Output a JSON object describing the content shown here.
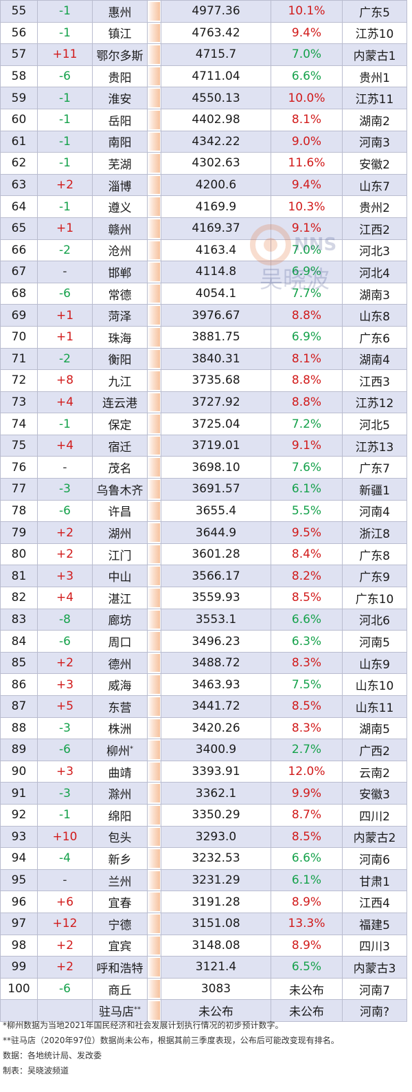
{
  "rows": [
    {
      "rank": "55",
      "change": "-1",
      "city": "惠州",
      "gdp": "4977.36",
      "growth": "10.1%",
      "prov": "广东5"
    },
    {
      "rank": "56",
      "change": "-1",
      "city": "镇江",
      "gdp": "4763.42",
      "growth": "9.4%",
      "prov": "江苏10"
    },
    {
      "rank": "57",
      "change": "+11",
      "city": "鄂尔多斯",
      "gdp": "4715.7",
      "growth": "7.0%",
      "prov": "内蒙古1"
    },
    {
      "rank": "58",
      "change": "-6",
      "city": "贵阳",
      "gdp": "4711.04",
      "growth": "6.6%",
      "prov": "贵州1"
    },
    {
      "rank": "59",
      "change": "-1",
      "city": "淮安",
      "gdp": "4550.13",
      "growth": "10.0%",
      "prov": "江苏11"
    },
    {
      "rank": "60",
      "change": "-1",
      "city": "岳阳",
      "gdp": "4402.98",
      "growth": "8.1%",
      "prov": "湖南2"
    },
    {
      "rank": "61",
      "change": "-1",
      "city": "南阳",
      "gdp": "4342.22",
      "growth": "9.0%",
      "prov": "河南3"
    },
    {
      "rank": "62",
      "change": "-1",
      "city": "芜湖",
      "gdp": "4302.63",
      "growth": "11.6%",
      "prov": "安徽2"
    },
    {
      "rank": "63",
      "change": "+2",
      "city": "淄博",
      "gdp": "4200.6",
      "growth": "9.4%",
      "prov": "山东7"
    },
    {
      "rank": "64",
      "change": "-1",
      "city": "遵义",
      "gdp": "4169.9",
      "growth": "10.3%",
      "prov": "贵州2"
    },
    {
      "rank": "65",
      "change": "+1",
      "city": "赣州",
      "gdp": "4169.37",
      "growth": "9.1%",
      "prov": "江西2"
    },
    {
      "rank": "66",
      "change": "-2",
      "city": "沧州",
      "gdp": "4163.4",
      "growth": "7.0%",
      "prov": "河北3"
    },
    {
      "rank": "67",
      "change": "-",
      "city": "邯郸",
      "gdp": "4114.8",
      "growth": "6.9%",
      "prov": "河北4"
    },
    {
      "rank": "68",
      "change": "-6",
      "city": "常德",
      "gdp": "4054.1",
      "growth": "7.7%",
      "prov": "湖南3"
    },
    {
      "rank": "69",
      "change": "+1",
      "city": "菏泽",
      "gdp": "3976.67",
      "growth": "8.8%",
      "prov": "山东8"
    },
    {
      "rank": "70",
      "change": "+1",
      "city": "珠海",
      "gdp": "3881.75",
      "growth": "6.9%",
      "prov": "广东6"
    },
    {
      "rank": "71",
      "change": "-2",
      "city": "衡阳",
      "gdp": "3840.31",
      "growth": "8.1%",
      "prov": "湖南4"
    },
    {
      "rank": "72",
      "change": "+8",
      "city": "九江",
      "gdp": "3735.68",
      "growth": "8.8%",
      "prov": "江西3"
    },
    {
      "rank": "73",
      "change": "+4",
      "city": "连云港",
      "gdp": "3727.92",
      "growth": "8.8%",
      "prov": "江苏12"
    },
    {
      "rank": "74",
      "change": "-1",
      "city": "保定",
      "gdp": "3725.04",
      "growth": "7.2%",
      "prov": "河北5"
    },
    {
      "rank": "75",
      "change": "+4",
      "city": "宿迁",
      "gdp": "3719.01",
      "growth": "9.1%",
      "prov": "江苏13"
    },
    {
      "rank": "76",
      "change": "-",
      "city": "茂名",
      "gdp": "3698.10",
      "growth": "7.6%",
      "prov": "广东7"
    },
    {
      "rank": "77",
      "change": "-3",
      "city": "乌鲁木齐",
      "gdp": "3691.57",
      "growth": "6.1%",
      "prov": "新疆1"
    },
    {
      "rank": "78",
      "change": "-6",
      "city": "许昌",
      "gdp": "3655.4",
      "growth": "5.5%",
      "prov": "河南4"
    },
    {
      "rank": "79",
      "change": "+2",
      "city": "湖州",
      "gdp": "3644.9",
      "growth": "9.5%",
      "prov": "浙江8"
    },
    {
      "rank": "80",
      "change": "+2",
      "city": "江门",
      "gdp": "3601.28",
      "growth": "8.4%",
      "prov": "广东8"
    },
    {
      "rank": "81",
      "change": "+3",
      "city": "中山",
      "gdp": "3566.17",
      "growth": "8.2%",
      "prov": "广东9"
    },
    {
      "rank": "82",
      "change": "+4",
      "city": "湛江",
      "gdp": "3559.93",
      "growth": "8.5%",
      "prov": "广东10"
    },
    {
      "rank": "83",
      "change": "-8",
      "city": "廊坊",
      "gdp": "3553.1",
      "growth": "6.6%",
      "prov": "河北6"
    },
    {
      "rank": "84",
      "change": "-6",
      "city": "周口",
      "gdp": "3496.23",
      "growth": "6.3%",
      "prov": "河南5"
    },
    {
      "rank": "85",
      "change": "+2",
      "city": "德州",
      "gdp": "3488.72",
      "growth": "8.3%",
      "prov": "山东9"
    },
    {
      "rank": "86",
      "change": "+3",
      "city": "威海",
      "gdp": "3463.93",
      "growth": "7.5%",
      "prov": "山东10"
    },
    {
      "rank": "87",
      "change": "+5",
      "city": "东营",
      "gdp": "3441.72",
      "growth": "8.5%",
      "prov": "山东11"
    },
    {
      "rank": "88",
      "change": "-3",
      "city": "株洲",
      "gdp": "3420.26",
      "growth": "8.3%",
      "prov": "湖南5"
    },
    {
      "rank": "89",
      "change": "-6",
      "city": "柳州",
      "sup": "*",
      "gdp": "3400.9",
      "growth": "2.7%",
      "prov": "广西2"
    },
    {
      "rank": "90",
      "change": "+3",
      "city": "曲靖",
      "gdp": "3393.91",
      "growth": "12.0%",
      "prov": "云南2"
    },
    {
      "rank": "91",
      "change": "-3",
      "city": "滁州",
      "gdp": "3362.1",
      "growth": "9.9%",
      "prov": "安徽3"
    },
    {
      "rank": "92",
      "change": "-1",
      "city": "绵阳",
      "gdp": "3350.29",
      "growth": "8.7%",
      "prov": "四川2"
    },
    {
      "rank": "93",
      "change": "+10",
      "city": "包头",
      "gdp": "3293.0",
      "growth": "8.5%",
      "prov": "内蒙古2"
    },
    {
      "rank": "94",
      "change": "-4",
      "city": "新乡",
      "gdp": "3232.53",
      "growth": "6.6%",
      "prov": "河南6"
    },
    {
      "rank": "95",
      "change": "-",
      "city": "兰州",
      "gdp": "3231.29",
      "growth": "6.1%",
      "prov": "甘肃1"
    },
    {
      "rank": "96",
      "change": "+6",
      "city": "宜春",
      "gdp": "3191.28",
      "growth": "8.9%",
      "prov": "江西4"
    },
    {
      "rank": "97",
      "change": "+12",
      "city": "宁德",
      "gdp": "3151.08",
      "growth": "13.3%",
      "prov": "福建5"
    },
    {
      "rank": "98",
      "change": "+2",
      "city": "宜宾",
      "gdp": "3148.08",
      "growth": "8.9%",
      "prov": "四川3"
    },
    {
      "rank": "99",
      "change": "+2",
      "city": "呼和浩特",
      "gdp": "3121.4",
      "growth": "6.5%",
      "prov": "内蒙古3"
    },
    {
      "rank": "100",
      "change": "-6",
      "city": "商丘",
      "gdp": "3083",
      "growth": "未公布",
      "prov": "河南7"
    },
    {
      "rank": "",
      "change": "",
      "city": "驻马店",
      "sup": "**",
      "gdp": "未公布",
      "growth": "未公布",
      "prov": "河南?"
    }
  ],
  "notes": {
    "note1": "*柳州数据为当地2021年国民经济和社会发展计划执行情况的初步预计数字。",
    "note2": "**驻马店（2020年97位）数据尚未公布，根据其前三季度表现，公布后可能改变现有排名。",
    "source": "数据：各地统计局、发改委",
    "maker": "制表：吴晓波频道"
  },
  "watermark": {
    "icon": "cnn-logo-icon",
    "text": "吴晓波"
  }
}
